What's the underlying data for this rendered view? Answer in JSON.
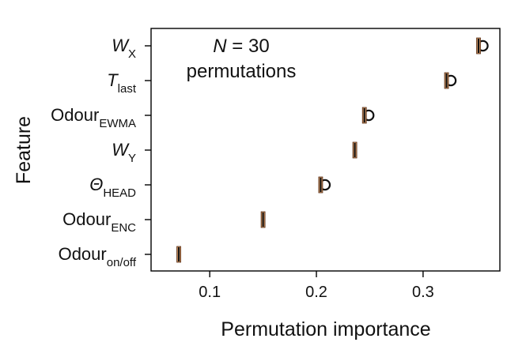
{
  "chart_data": {
    "type": "scatter",
    "xlabel": "Permutation importance",
    "ylabel": "Feature",
    "xlim": [
      0.045,
      0.372
    ],
    "xticks": [
      0.1,
      0.2,
      0.3
    ],
    "xtick_labels": [
      "0.1",
      "0.2",
      "0.3"
    ],
    "annotation": {
      "line1_italic": "N",
      "line1_rest": " = 30",
      "line2": "permutations"
    },
    "features": [
      {
        "base": "W",
        "sub": "X",
        "italic": true,
        "importance": 0.352,
        "marker": 0.356,
        "open_circle": true
      },
      {
        "base": "T",
        "sub": "last",
        "italic": true,
        "importance": 0.322,
        "marker": 0.326,
        "open_circle": true
      },
      {
        "base": "Odour",
        "sub": "EWMA",
        "italic": false,
        "importance": 0.245,
        "marker": 0.249,
        "open_circle": true
      },
      {
        "base": "W",
        "sub": "Y",
        "italic": true,
        "importance": 0.236,
        "marker": 0.238,
        "open_circle": false
      },
      {
        "base": "Θ",
        "sub": "HEAD",
        "italic": true,
        "importance": 0.204,
        "marker": 0.208,
        "open_circle": true
      },
      {
        "base": "Odour",
        "sub": "ENC",
        "italic": false,
        "importance": 0.15,
        "marker": 0.15,
        "open_circle": false
      },
      {
        "base": "Odour",
        "sub": "on/off",
        "italic": false,
        "importance": 0.071,
        "marker": 0.071,
        "open_circle": false
      }
    ],
    "colors": {
      "bar": "#c08a5c",
      "median": "#111111",
      "frame": "#000000",
      "text": "#111111"
    }
  }
}
